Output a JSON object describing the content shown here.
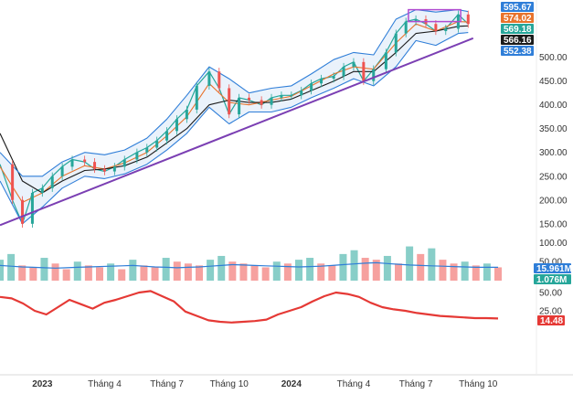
{
  "chart_data": [
    {
      "panel": "price",
      "type": "line",
      "y_axis_ticks": [
        "500.00",
        "450.00",
        "400.00",
        "350.00",
        "300.00",
        "250.00",
        "200.00",
        "150.00"
      ],
      "ylim": [
        140,
        605
      ],
      "grid": false,
      "x_axis_ticks": [
        "2023",
        "Tháng 4",
        "Tháng 7",
        "Tháng 10",
        "2024",
        "Tháng 4",
        "Tháng 7",
        "Tháng 10"
      ],
      "series": [
        {
          "key": "close",
          "color": "#26a69a",
          "x": [
            2022.83,
            2022.88,
            2022.92,
            2022.96,
            2023.0,
            2023.04,
            2023.08,
            2023.12,
            2023.17,
            2023.21,
            2023.25,
            2023.29,
            2023.33,
            2023.38,
            2023.42,
            2023.46,
            2023.5,
            2023.54,
            2023.58,
            2023.62,
            2023.67,
            2023.71,
            2023.75,
            2023.79,
            2023.83,
            2023.88,
            2023.92,
            2023.96,
            2024.0,
            2024.04,
            2024.08,
            2024.12,
            2024.17,
            2024.21,
            2024.25,
            2024.29,
            2024.33,
            2024.38,
            2024.42,
            2024.46,
            2024.5,
            2024.54,
            2024.58,
            2024.62,
            2024.67,
            2024.71
          ],
          "values": [
            275,
            200,
            150,
            215,
            225,
            250,
            270,
            285,
            280,
            265,
            260,
            270,
            285,
            300,
            310,
            325,
            345,
            370,
            390,
            440,
            470,
            435,
            380,
            415,
            410,
            400,
            415,
            420,
            420,
            430,
            445,
            455,
            460,
            480,
            490,
            450,
            475,
            510,
            550,
            575,
            580,
            570,
            555,
            560,
            590,
            570
          ]
        },
        {
          "key": "ma_short",
          "color": "#e8732c",
          "x": [
            2022.83,
            2022.92,
            2023.0,
            2023.08,
            2023.17,
            2023.25,
            2023.33,
            2023.42,
            2023.5,
            2023.58,
            2023.67,
            2023.75,
            2023.83,
            2023.92,
            2024.0,
            2024.08,
            2024.17,
            2024.25,
            2024.33,
            2024.42,
            2024.5,
            2024.58,
            2024.67,
            2024.71
          ],
          "values": [
            270,
            195,
            215,
            250,
            272,
            265,
            278,
            300,
            335,
            375,
            445,
            405,
            400,
            410,
            418,
            440,
            465,
            480,
            475,
            530,
            570,
            555,
            575,
            574
          ]
        },
        {
          "key": "ma_long",
          "color": "#1a1a1a",
          "x": [
            2022.83,
            2022.92,
            2023.0,
            2023.08,
            2023.17,
            2023.25,
            2023.33,
            2023.42,
            2023.5,
            2023.58,
            2023.67,
            2023.75,
            2023.83,
            2023.92,
            2024.0,
            2024.08,
            2024.17,
            2024.25,
            2024.33,
            2024.42,
            2024.5,
            2024.58,
            2024.67,
            2024.71
          ],
          "values": [
            340,
            240,
            215,
            240,
            262,
            265,
            272,
            290,
            320,
            350,
            400,
            410,
            405,
            405,
            412,
            430,
            450,
            470,
            470,
            510,
            550,
            555,
            565,
            566
          ]
        },
        {
          "key": "bb_upper",
          "color": "#2f7ed8",
          "x": [
            2022.83,
            2022.92,
            2023.0,
            2023.08,
            2023.17,
            2023.25,
            2023.33,
            2023.42,
            2023.5,
            2023.58,
            2023.67,
            2023.75,
            2023.83,
            2023.92,
            2024.0,
            2024.08,
            2024.17,
            2024.25,
            2024.33,
            2024.42,
            2024.5,
            2024.58,
            2024.67,
            2024.71
          ],
          "values": [
            300,
            250,
            250,
            280,
            300,
            295,
            305,
            330,
            370,
            420,
            480,
            455,
            425,
            435,
            440,
            465,
            495,
            510,
            505,
            580,
            600,
            595,
            600,
            596
          ]
        },
        {
          "key": "bb_lower",
          "color": "#2f7ed8",
          "x": [
            2022.83,
            2022.92,
            2023.0,
            2023.08,
            2023.17,
            2023.25,
            2023.33,
            2023.42,
            2023.5,
            2023.58,
            2023.67,
            2023.75,
            2023.83,
            2023.92,
            2024.0,
            2024.08,
            2024.17,
            2024.25,
            2024.33,
            2024.42,
            2024.5,
            2024.58,
            2024.67,
            2024.71
          ],
          "values": [
            240,
            150,
            185,
            225,
            250,
            245,
            255,
            275,
            305,
            340,
            395,
            360,
            385,
            385,
            395,
            415,
            435,
            455,
            440,
            480,
            535,
            525,
            550,
            552
          ]
        }
      ],
      "trendline": {
        "color": "#7b3fb3",
        "x": [
          2022.83,
          2024.73
        ],
        "values": [
          147,
          540
        ]
      },
      "highlight_box": {
        "color": "#b04bd0",
        "x": [
          2024.47,
          2024.68
        ],
        "values": [
          575,
          600
        ]
      },
      "price_badges": [
        {
          "label": "595.67",
          "color": "#2f7ed8",
          "value": 595.67
        },
        {
          "label": "574.02",
          "color": "#e8732c",
          "value": 574.02
        },
        {
          "label": "569.18",
          "color": "#26a69a",
          "value": 569.18
        },
        {
          "label": "566.16",
          "color": "#1a1a1a",
          "value": 566.16
        },
        {
          "label": "552.38",
          "color": "#2f7ed8",
          "value": 552.38
        }
      ]
    },
    {
      "panel": "volume",
      "type": "bar",
      "y_axis_ticks": [
        "100.00",
        "50.00"
      ],
      "ylim": [
        0,
        125
      ],
      "volume_ma_color": "#2f7ed8",
      "volume_ma": [
        40,
        38,
        36,
        35,
        34,
        33,
        34,
        35,
        36,
        37,
        38,
        39,
        40,
        38,
        36,
        35,
        34,
        35,
        36,
        38,
        40,
        42,
        41,
        40,
        39,
        38,
        37,
        36,
        37,
        38,
        40,
        42,
        44,
        46,
        47,
        45,
        43,
        41,
        40,
        39,
        38,
        37,
        36,
        35,
        35,
        35
      ],
      "bars": [
        55,
        70,
        40,
        35,
        60,
        45,
        30,
        50,
        40,
        35,
        45,
        30,
        55,
        40,
        35,
        60,
        50,
        45,
        40,
        55,
        65,
        50,
        45,
        40,
        35,
        50,
        45,
        55,
        60,
        45,
        40,
        70,
        80,
        60,
        55,
        65,
        45,
        90,
        70,
        85,
        55,
        45,
        50,
        40,
        45,
        35
      ],
      "up_color": "#26a69a",
      "down_color": "#ef5350",
      "badges": [
        {
          "label": "15.961M",
          "color": "#2f7ed8"
        },
        {
          "label": "1.076M",
          "color": "#26a69a"
        }
      ]
    },
    {
      "panel": "oscillator",
      "type": "line",
      "y_axis_ticks": [
        "50.00",
        "25.00"
      ],
      "ylim": [
        0,
        60
      ],
      "line_color": "#e53935",
      "values": [
        44,
        42,
        35,
        25,
        20,
        30,
        40,
        34,
        28,
        36,
        40,
        45,
        50,
        52,
        45,
        38,
        24,
        18,
        12,
        10,
        9,
        10,
        11,
        13,
        20,
        25,
        30,
        38,
        45,
        50,
        48,
        44,
        36,
        30,
        27,
        25,
        22,
        20,
        18,
        17,
        16,
        15,
        15,
        14.48
      ],
      "badge": {
        "label": "14.48",
        "color": "#e53935"
      }
    }
  ]
}
